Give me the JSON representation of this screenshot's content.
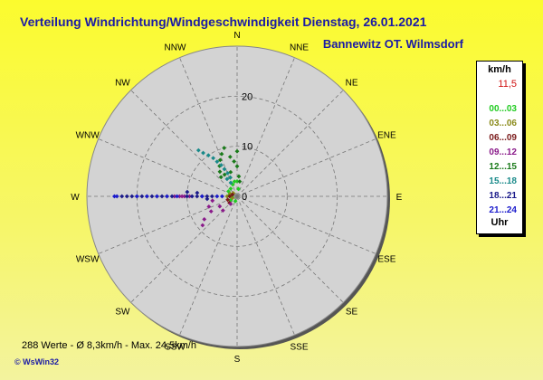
{
  "header": {
    "title": "Verteilung Windrichtung/Windgeschwindigkeit  Dienstag, 26.01.2021",
    "location": "Bannewitz OT. Wilmsdorf"
  },
  "footer": {
    "summary": "288 Werte   -   Ø 8,3km/h  -  Max. 24,5km/h",
    "brand": "© WsWin32"
  },
  "legend": {
    "unit": "km/h",
    "max_value": "11,5",
    "bottom_label": "Uhr",
    "items": [
      {
        "label": "00...03",
        "color": "#22cc22"
      },
      {
        "label": "03...06",
        "color": "#8a8a1a"
      },
      {
        "label": "06...09",
        "color": "#7a1a1a"
      },
      {
        "label": "09...12",
        "color": "#8a1a8a"
      },
      {
        "label": "12...15",
        "color": "#1a7a1a"
      },
      {
        "label": "15...18",
        "color": "#1a8a8a"
      },
      {
        "label": "18...21",
        "color": "#1a1a8a"
      },
      {
        "label": "21...24",
        "color": "#1a1acc"
      }
    ]
  },
  "chart_data": {
    "type": "scatter",
    "coordinate_system": "polar",
    "radial_unit": "km/h",
    "radial_max": 30,
    "radial_ticks": [
      0,
      10,
      20
    ],
    "directions": [
      "N",
      "NNE",
      "NE",
      "ENE",
      "E",
      "ESE",
      "SE",
      "SSE",
      "S",
      "SSW",
      "SW",
      "WSW",
      "W",
      "WNW",
      "NW",
      "NNW"
    ],
    "series": [
      {
        "name": "00...03",
        "color": "#22cc22",
        "points": [
          [
            270,
            1
          ],
          [
            280,
            1.5
          ],
          [
            300,
            2
          ],
          [
            320,
            2
          ],
          [
            340,
            2.5
          ],
          [
            350,
            3
          ],
          [
            0,
            3
          ],
          [
            10,
            1.5
          ],
          [
            200,
            1
          ],
          [
            240,
            1.5
          ]
        ]
      },
      {
        "name": "03...06",
        "color": "#8a8a1a",
        "points": [
          [
            270,
            2
          ],
          [
            290,
            1.5
          ],
          [
            310,
            1
          ],
          [
            250,
            1
          ]
        ]
      },
      {
        "name": "06...09",
        "color": "#7a1a1a",
        "points": [
          [
            270,
            1.5
          ],
          [
            250,
            2
          ],
          [
            230,
            2
          ],
          [
            290,
            1
          ]
        ]
      },
      {
        "name": "09...12",
        "color": "#8a1a8a",
        "points": [
          [
            270,
            11
          ],
          [
            270,
            11.5
          ],
          [
            270,
            12.5
          ],
          [
            270,
            10.5
          ],
          [
            270,
            9.5
          ],
          [
            260,
            5
          ],
          [
            250,
            6
          ],
          [
            240,
            6
          ],
          [
            235,
            8
          ],
          [
            230,
            9
          ],
          [
            220,
            2
          ],
          [
            225,
            4
          ],
          [
            240,
            4
          ]
        ]
      },
      {
        "name": "12...15",
        "color": "#1a7a1a",
        "points": [
          [
            345,
            10
          ],
          [
            340,
            9
          ],
          [
            335,
            8
          ],
          [
            330,
            7
          ],
          [
            325,
            6
          ],
          [
            320,
            5
          ],
          [
            330,
            5
          ],
          [
            340,
            4
          ],
          [
            345,
            5
          ],
          [
            350,
            8
          ],
          [
            355,
            7
          ],
          [
            0,
            9
          ],
          [
            0,
            6
          ],
          [
            5,
            4
          ],
          [
            10,
            3
          ]
        ]
      },
      {
        "name": "15...18",
        "color": "#1a8a8a",
        "points": [
          [
            320,
            12
          ],
          [
            322,
            11
          ],
          [
            325,
            10
          ],
          [
            328,
            9
          ],
          [
            330,
            8
          ],
          [
            333,
            7
          ],
          [
            335,
            6
          ],
          [
            338,
            5
          ],
          [
            340,
            4
          ],
          [
            335,
            3
          ],
          [
            330,
            4
          ]
        ]
      },
      {
        "name": "18...21",
        "color": "#1a1a8a",
        "points": [
          [
            270,
            5
          ],
          [
            270,
            6
          ],
          [
            270,
            7
          ],
          [
            270,
            8
          ],
          [
            270,
            9
          ],
          [
            270,
            10
          ],
          [
            270,
            13
          ],
          [
            270,
            14
          ],
          [
            270,
            15
          ],
          [
            270,
            16
          ],
          [
            270,
            17
          ],
          [
            270,
            18
          ],
          [
            270,
            19
          ],
          [
            270,
            20
          ],
          [
            270,
            21
          ],
          [
            270,
            22
          ],
          [
            270,
            23
          ],
          [
            275,
            8
          ],
          [
            275,
            10
          ],
          [
            265,
            6
          ]
        ]
      },
      {
        "name": "21...24",
        "color": "#1a1acc",
        "points": [
          [
            270,
            24
          ],
          [
            270,
            24.5
          ],
          [
            270,
            20
          ],
          [
            270,
            18
          ],
          [
            270,
            16
          ],
          [
            270,
            14
          ],
          [
            270,
            12
          ],
          [
            270,
            7
          ],
          [
            270,
            4
          ],
          [
            270,
            3
          ]
        ]
      }
    ]
  }
}
